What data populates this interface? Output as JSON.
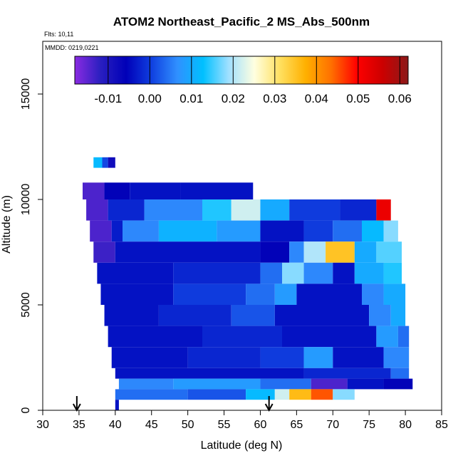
{
  "chart_data": {
    "type": "heatmap",
    "title": "ATOM2 Northeast_Pacific_2 MS_Abs_500nm",
    "flights_label": "Flts: 10,11",
    "dates_label": "MMDD: 0219,0221",
    "xlabel": "Latitude (deg N)",
    "ylabel": "Altitude (m)",
    "xlim": [
      30,
      85
    ],
    "ylim": [
      0,
      17500
    ],
    "x_ticks": [
      "30",
      "35",
      "40",
      "45",
      "50",
      "55",
      "60",
      "65",
      "70",
      "75",
      "80",
      "85"
    ],
    "y_ticks": [
      "0",
      "5000",
      "10000",
      "15000"
    ],
    "colorbar": {
      "range": [
        -0.018,
        0.062
      ],
      "ticks": [
        "-0.01",
        "0.00",
        "0.01",
        "0.02",
        "0.03",
        "0.04",
        "0.05",
        "0.06"
      ],
      "tick_values": [
        -0.01,
        0.0,
        0.01,
        0.02,
        0.03,
        0.04,
        0.05,
        0.06
      ],
      "colors": [
        "#8a2be2",
        "#2a1fc0",
        "#0000b8",
        "#1040e0",
        "#3090ff",
        "#00c0ff",
        "#a0e0ff",
        "#ffffe0",
        "#ffe060",
        "#ffb000",
        "#ff7000",
        "#ff0000",
        "#cc0000",
        "#8b1a1a"
      ]
    },
    "arrows_latitude": [
      34.7,
      61.2
    ],
    "layers": [
      {
        "alt_min": 11500,
        "alt_max": 12000,
        "lat_min": 37.0,
        "lat_max": 40.0,
        "segments": [
          [
            37.0,
            0.012
          ],
          [
            38.2,
            0.001
          ],
          [
            39.0,
            -0.008
          ]
        ]
      },
      {
        "alt_min": 10000,
        "alt_max": 10800,
        "lat_min": 35.5,
        "lat_max": 59.0,
        "segments": [
          [
            35.5,
            -0.014
          ],
          [
            38.5,
            -0.006
          ],
          [
            42.0,
            -0.004
          ],
          [
            49.0,
            -0.004
          ]
        ]
      },
      {
        "alt_min": 9000,
        "alt_max": 10000,
        "lat_min": 36.0,
        "lat_max": 78.0,
        "segments": [
          [
            36.0,
            -0.014
          ],
          [
            39.0,
            -0.002
          ],
          [
            44.0,
            0.006
          ],
          [
            52.0,
            0.014
          ],
          [
            56.0,
            0.022
          ],
          [
            60.0,
            0.01
          ],
          [
            64.0,
            0.0
          ],
          [
            71.0,
            -0.002
          ],
          [
            76.0,
            0.052
          ]
        ]
      },
      {
        "alt_min": 8000,
        "alt_max": 9000,
        "lat_min": 36.5,
        "lat_max": 79.0,
        "segments": [
          [
            36.5,
            -0.014
          ],
          [
            39.5,
            -0.003
          ],
          [
            41.0,
            0.006
          ],
          [
            46.0,
            0.011
          ],
          [
            54.0,
            0.008
          ],
          [
            60.0,
            -0.004
          ],
          [
            66.0,
            0.0
          ],
          [
            70.0,
            0.004
          ],
          [
            74.0,
            0.012
          ],
          [
            77.0,
            0.018
          ]
        ]
      },
      {
        "alt_min": 7000,
        "alt_max": 8000,
        "lat_min": 37.0,
        "lat_max": 79.5,
        "segments": [
          [
            37.0,
            -0.013
          ],
          [
            40.0,
            -0.004
          ],
          [
            60.0,
            -0.006
          ],
          [
            64.0,
            0.006
          ],
          [
            66.0,
            0.02
          ],
          [
            69.0,
            0.035
          ],
          [
            73.0,
            0.01
          ],
          [
            76.0,
            0.016
          ]
        ]
      },
      {
        "alt_min": 6000,
        "alt_max": 7000,
        "lat_min": 37.5,
        "lat_max": 79.5,
        "segments": [
          [
            37.5,
            -0.004
          ],
          [
            48.0,
            -0.002
          ],
          [
            60.0,
            0.004
          ],
          [
            63.0,
            0.018
          ],
          [
            66.0,
            0.006
          ],
          [
            70.0,
            -0.004
          ],
          [
            73.0,
            0.01
          ],
          [
            77.0,
            0.014
          ]
        ]
      },
      {
        "alt_min": 5000,
        "alt_max": 6000,
        "lat_min": 38.0,
        "lat_max": 80.0,
        "segments": [
          [
            38.0,
            -0.004
          ],
          [
            48.0,
            0.0
          ],
          [
            58.0,
            0.004
          ],
          [
            62.0,
            0.008
          ],
          [
            65.0,
            -0.004
          ],
          [
            74.0,
            0.006
          ],
          [
            77.0,
            0.01
          ]
        ]
      },
      {
        "alt_min": 4000,
        "alt_max": 5000,
        "lat_min": 38.5,
        "lat_max": 80.0,
        "segments": [
          [
            38.5,
            -0.004
          ],
          [
            46.0,
            -0.002
          ],
          [
            56.0,
            0.002
          ],
          [
            62.0,
            -0.004
          ],
          [
            75.0,
            0.006
          ],
          [
            78.0,
            0.01
          ]
        ]
      },
      {
        "alt_min": 3000,
        "alt_max": 4000,
        "lat_min": 39.0,
        "lat_max": 80.5,
        "segments": [
          [
            39.0,
            -0.004
          ],
          [
            52.0,
            -0.002
          ],
          [
            63.0,
            -0.004
          ],
          [
            76.0,
            0.008
          ],
          [
            79.0,
            0.004
          ]
        ]
      },
      {
        "alt_min": 2000,
        "alt_max": 3000,
        "lat_min": 39.5,
        "lat_max": 80.5,
        "segments": [
          [
            39.5,
            -0.004
          ],
          [
            50.0,
            -0.002
          ],
          [
            60.0,
            0.0
          ],
          [
            66.0,
            0.008
          ],
          [
            70.0,
            -0.004
          ],
          [
            77.0,
            0.006
          ]
        ]
      },
      {
        "alt_min": 1500,
        "alt_max": 2000,
        "lat_min": 40.0,
        "lat_max": 80.5,
        "segments": [
          [
            40.0,
            -0.004
          ],
          [
            66.0,
            -0.002
          ],
          [
            78.0,
            0.004
          ]
        ]
      },
      {
        "alt_min": 1000,
        "alt_max": 1500,
        "lat_min": 40.5,
        "lat_max": 81.0,
        "segments": [
          [
            40.5,
            0.006
          ],
          [
            48.0,
            0.008
          ],
          [
            60.0,
            0.004
          ],
          [
            67.0,
            -0.014
          ],
          [
            72.0,
            -0.004
          ],
          [
            77.0,
            -0.006
          ]
        ]
      },
      {
        "alt_min": 500,
        "alt_max": 1000,
        "lat_min": 40.0,
        "lat_max": 73.0,
        "segments": [
          [
            40.0,
            0.004
          ],
          [
            50.0,
            0.002
          ],
          [
            58.0,
            0.012
          ],
          [
            62.0,
            0.022
          ],
          [
            64.0,
            0.036
          ],
          [
            67.0,
            0.045
          ],
          [
            70.0,
            0.018
          ]
        ]
      },
      {
        "alt_min": 0,
        "alt_max": 500,
        "lat_min": 40.0,
        "lat_max": 40.5,
        "segments": [
          [
            40.0,
            -0.004
          ]
        ]
      }
    ]
  }
}
